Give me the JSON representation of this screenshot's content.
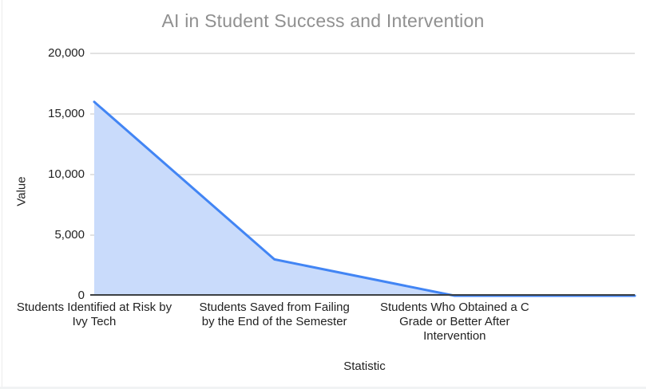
{
  "chart_data": {
    "type": "area",
    "title": "AI in Student Success and Intervention",
    "xlabel": "Statistic",
    "ylabel": "Value",
    "categories": [
      "Students Identified at Risk by\nIvy Tech",
      "Students Saved from Failing\nby the End of the Semester",
      "Students Who Obtained a C\nGrade or Better After\nIntervention",
      ""
    ],
    "values": [
      16000,
      3000,
      0,
      0
    ],
    "ylim": [
      0,
      20000
    ],
    "yticks": [
      0,
      5000,
      10000,
      15000,
      20000
    ],
    "ytick_labels": [
      "0",
      "5,000",
      "10,000",
      "15,000",
      "20,000"
    ],
    "grid": true,
    "legend": "none",
    "colors": {
      "line": "#4285f4",
      "fill": "#c9dbfb",
      "grid": "#e2e2e2",
      "axis": "#3c4043",
      "title": "#909090",
      "ticks": "#222222"
    }
  }
}
